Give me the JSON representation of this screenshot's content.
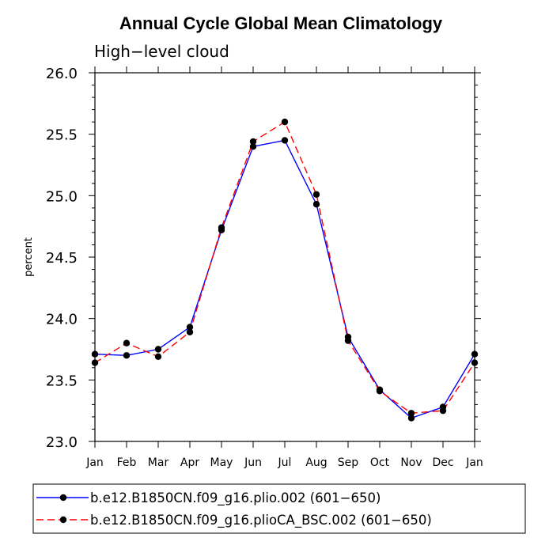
{
  "chart_data": {
    "type": "line",
    "title": "Annual Cycle Global Mean Climatology",
    "subtitle": "High−level cloud",
    "xlabel": "",
    "ylabel": "percent",
    "categories": [
      "Jan",
      "Feb",
      "Mar",
      "Apr",
      "May",
      "Jun",
      "Jul",
      "Aug",
      "Sep",
      "Oct",
      "Nov",
      "Dec",
      "Jan"
    ],
    "ylim": [
      23.0,
      26.0
    ],
    "yticks": [
      "23.0",
      "23.5",
      "24.0",
      "24.5",
      "25.0",
      "25.5",
      "26.0"
    ],
    "grid": false,
    "legend_position": "bottom",
    "series": [
      {
        "name": "b.e12.B1850CN.f09_g16.plio.002 (601−650)",
        "color": "#0000ff",
        "dash": "solid",
        "values": [
          23.71,
          23.7,
          23.75,
          23.93,
          24.72,
          25.4,
          25.45,
          24.93,
          23.85,
          23.42,
          23.19,
          23.28,
          23.71
        ]
      },
      {
        "name": "b.e12.B1850CN.f09_g16.plioCA_BSC.002 (601−650)",
        "color": "#ff0000",
        "dash": "dashed",
        "values": [
          23.64,
          23.8,
          23.69,
          23.89,
          24.74,
          25.44,
          25.6,
          25.01,
          23.82,
          23.41,
          23.23,
          23.25,
          23.64
        ]
      }
    ]
  }
}
